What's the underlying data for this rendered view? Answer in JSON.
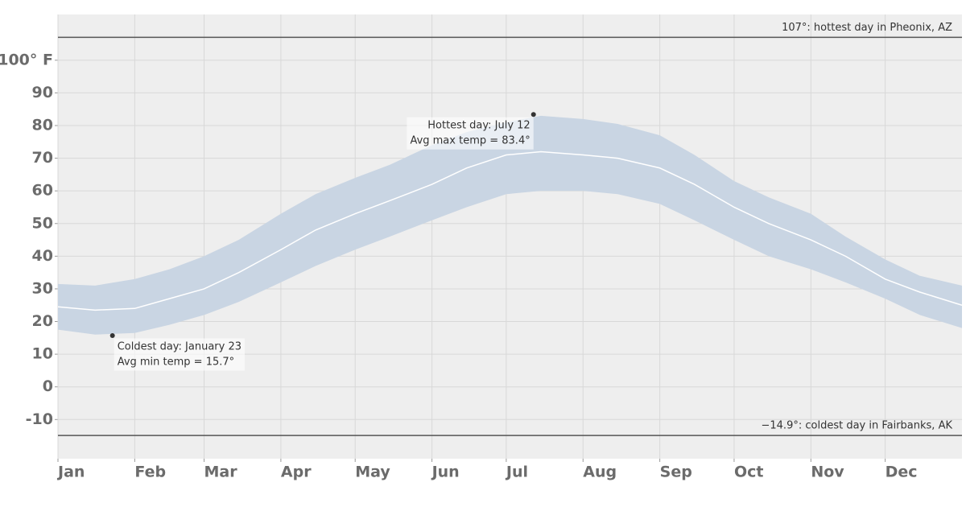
{
  "chart_data": {
    "type": "band",
    "x": [
      0,
      15,
      31,
      45,
      59,
      73,
      90,
      104,
      120,
      134,
      151,
      165,
      181,
      195,
      212,
      226,
      243,
      257,
      273,
      287,
      304,
      318,
      334,
      348,
      365
    ],
    "series": [
      {
        "role": "max",
        "values": [
          31.5,
          31,
          33,
          36,
          40,
          45,
          53,
          59,
          64,
          68,
          74,
          78,
          81,
          83,
          82,
          80.5,
          77,
          71,
          63,
          58,
          53,
          46,
          39,
          34,
          31
        ]
      },
      {
        "role": "min",
        "values": [
          17.5,
          16,
          16.5,
          19,
          22,
          26,
          32,
          37,
          42,
          46,
          51,
          55,
          59,
          60,
          60,
          59,
          56,
          51,
          45,
          40,
          36,
          32,
          27,
          22,
          18
        ]
      },
      {
        "role": "avg",
        "values": [
          24.5,
          23.5,
          24,
          27,
          30,
          35,
          42,
          48,
          53,
          57,
          62,
          67,
          71,
          72,
          71,
          70,
          67,
          62,
          55,
          50,
          45,
          40,
          33,
          29,
          25
        ]
      }
    ],
    "band_color": "#c9d5e3",
    "line_color": "#ffffff",
    "xlim": [
      0,
      365
    ],
    "xticks": [
      {
        "value": 0,
        "label": "Jan"
      },
      {
        "value": 31,
        "label": "Feb"
      },
      {
        "value": 59,
        "label": "Mar"
      },
      {
        "value": 90,
        "label": "Apr"
      },
      {
        "value": 120,
        "label": "May"
      },
      {
        "value": 151,
        "label": "Jun"
      },
      {
        "value": 181,
        "label": "Jul"
      },
      {
        "value": 212,
        "label": "Aug"
      },
      {
        "value": 243,
        "label": "Sep"
      },
      {
        "value": 273,
        "label": "Oct"
      },
      {
        "value": 304,
        "label": "Nov"
      },
      {
        "value": 334,
        "label": "Dec"
      }
    ],
    "ylim": [
      -22,
      114
    ],
    "yticks": [
      -10,
      0,
      10,
      20,
      30,
      40,
      50,
      60,
      70,
      80,
      90,
      {
        "value": 100,
        "label": "100° F"
      }
    ],
    "grid": true,
    "reference_lines": [
      {
        "value": 107,
        "label": "107°: hottest day in Pheonix, AZ"
      },
      {
        "value": -14.9,
        "label": "−14.9°: coldest day in Fairbanks, AK"
      }
    ],
    "annotations": [
      {
        "x": 192,
        "value": 83.4,
        "lines": [
          "Hottest day: July 12",
          "Avg max temp = 83.4°"
        ]
      },
      {
        "x": 22,
        "value": 15.7,
        "lines": [
          "Coldest day: January 23",
          "Avg min temp = 15.7°"
        ]
      }
    ]
  }
}
